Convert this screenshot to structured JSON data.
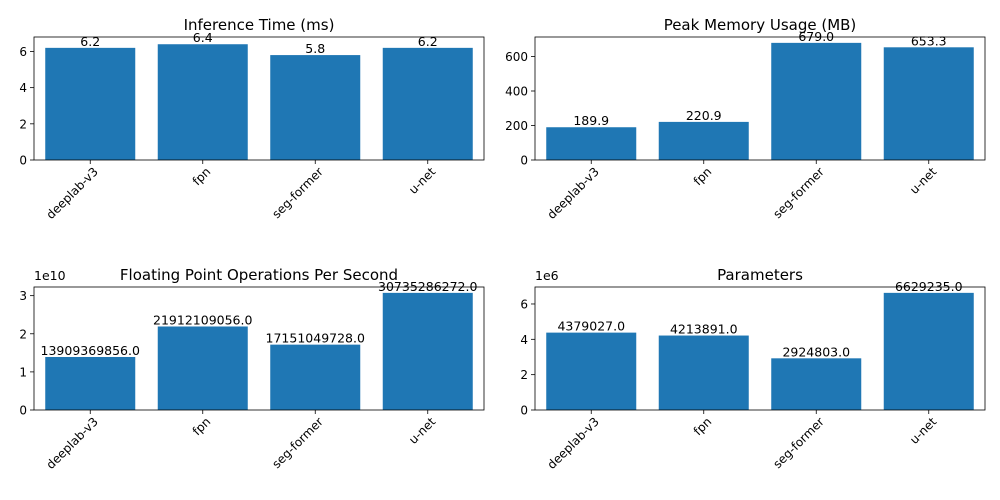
{
  "colors": {
    "bar": "#1f77b4",
    "axis": "#000000"
  },
  "chart_data": [
    {
      "type": "bar",
      "title": "Inference Time (ms)",
      "categories": [
        "deeplab-v3",
        "fpn",
        "seg-former",
        "u-net"
      ],
      "values": [
        6.2,
        6.4,
        5.8,
        6.2
      ],
      "value_labels": [
        "6.2",
        "6.4",
        "5.8",
        "6.2"
      ],
      "ylim": [
        0,
        6.8
      ],
      "yticks": [
        0,
        2,
        4,
        6
      ],
      "ytick_labels": [
        "0",
        "2",
        "4",
        "6"
      ],
      "offset_label": "",
      "grid": false
    },
    {
      "type": "bar",
      "title": "Peak Memory Usage (MB)",
      "categories": [
        "deeplab-v3",
        "fpn",
        "seg-former",
        "u-net"
      ],
      "values": [
        189.9,
        220.9,
        679.0,
        653.3
      ],
      "value_labels": [
        "189.9",
        "220.9",
        "679.0",
        "653.3"
      ],
      "ylim": [
        0,
        713
      ],
      "yticks": [
        0,
        200,
        400,
        600
      ],
      "ytick_labels": [
        "0",
        "200",
        "400",
        "600"
      ],
      "offset_label": "",
      "grid": false
    },
    {
      "type": "bar",
      "title": "Floating Point Operations Per Second",
      "categories": [
        "deeplab-v3",
        "fpn",
        "seg-former",
        "u-net"
      ],
      "values": [
        13909369856.0,
        21912109056.0,
        17151049728.0,
        30735286272.0
      ],
      "value_labels": [
        "13909369856.0",
        "21912109056.0",
        "17151049728.0",
        "30735286272.0"
      ],
      "ylim": [
        0,
        32272050585.6
      ],
      "yticks": [
        0,
        10000000000,
        20000000000,
        30000000000
      ],
      "ytick_labels": [
        "0",
        "1",
        "2",
        "3"
      ],
      "offset_label": "1e10",
      "grid": false
    },
    {
      "type": "bar",
      "title": "Parameters",
      "categories": [
        "deeplab-v3",
        "fpn",
        "seg-former",
        "u-net"
      ],
      "values": [
        4379027.0,
        4213891.0,
        2924803.0,
        6629235.0
      ],
      "value_labels": [
        "4379027.0",
        "4213891.0",
        "2924803.0",
        "6629235.0"
      ],
      "ylim": [
        0,
        6960696.75
      ],
      "yticks": [
        0,
        2000000,
        4000000,
        6000000
      ],
      "ytick_labels": [
        "0",
        "2",
        "4",
        "6"
      ],
      "offset_label": "1e6",
      "grid": false
    }
  ]
}
